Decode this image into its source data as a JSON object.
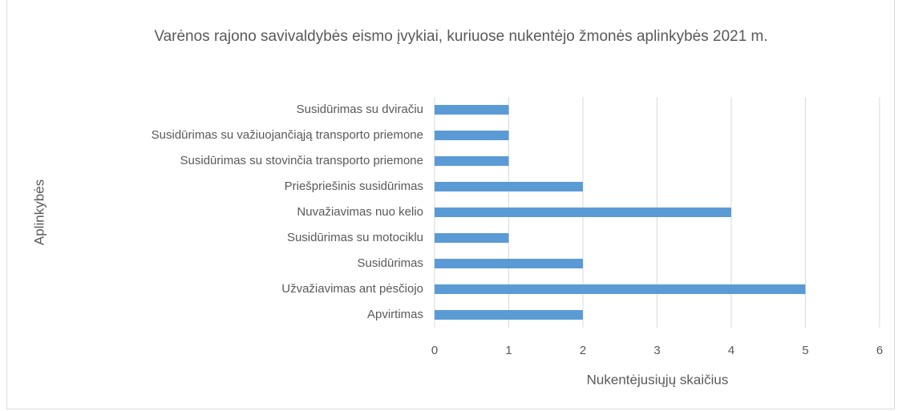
{
  "chart_data": {
    "type": "hbar",
    "title": "Varėnos rajono savivaldybės eismo įvykiai, kuriuose nukentėjo žmonės aplinkybės 2021 m.",
    "x_label": "Nukentėjusiųjų skaičius",
    "y_label": "Aplinkybės",
    "categories": [
      "Susidūrimas su dviračiu",
      "Susidūrimas su važiuojančiąją transporto priemone",
      "Susidūrimas su stovinčia transporto priemone",
      "Priešpriešinis susidūrimas",
      "Nuvažiavimas nuo kelio",
      "Susidūrimas su motociklu",
      "Susidūrimas",
      "Užvažiavimas ant pėsčiojo",
      "Apvirtimas"
    ],
    "values": [
      1,
      1,
      1,
      2,
      4,
      1,
      2,
      5,
      2
    ],
    "color": "#5b9bd5",
    "xlim": [
      0,
      6
    ],
    "xticks": [
      0,
      1,
      2,
      3,
      4,
      5,
      6
    ],
    "grid": true
  }
}
